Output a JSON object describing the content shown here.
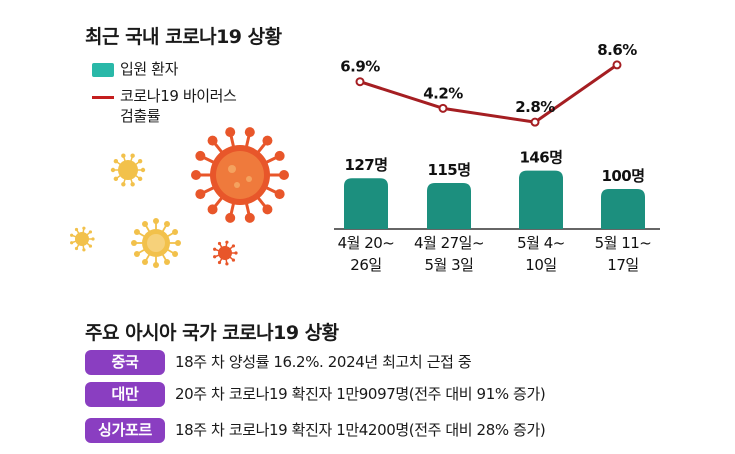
{
  "main_title": "최근 국내 코로나19 상황",
  "legend": {
    "bar_label": "입원 환자",
    "line_label_1": "코로나19 바이러스",
    "line_label_2": "검출률"
  },
  "colors": {
    "bar": "#1c8f7e",
    "line": "#a51e22",
    "badge": "#8a3ec1",
    "virus_orange": "#e8562a",
    "virus_yellow": "#f2c14b"
  },
  "chart_data": {
    "type": "bar",
    "categories": [
      [
        "4월 20~",
        "26일"
      ],
      [
        "4월 27일~",
        "5월 3일"
      ],
      [
        "5월 4~",
        "10일"
      ],
      [
        "5월 11~",
        "17일"
      ]
    ],
    "series": [
      {
        "name": "입원 환자",
        "type": "bar",
        "values": [
          127,
          115,
          146,
          100
        ],
        "labels": [
          "127명",
          "115명",
          "146명",
          "100명"
        ]
      },
      {
        "name": "코로나19 바이러스 검출률",
        "type": "line",
        "values": [
          6.9,
          4.2,
          2.8,
          8.6
        ],
        "labels": [
          "6.9%",
          "4.2%",
          "2.8%",
          "8.6%"
        ]
      }
    ]
  },
  "asia_section": {
    "title": "주요 아시아 국가 코로나19 상황",
    "rows": [
      {
        "country": "중국",
        "text": "18주 차 양성률 16.2%. 2024년 최고치 근접 중"
      },
      {
        "country": "대만",
        "text": "20주 차 코로나19 확진자 1만9097명(전주 대비 91% 증가)"
      },
      {
        "country": "싱가포르",
        "text": "18주 차 코로나19 확진자 1만4200명(전주 대비 28% 증가)"
      }
    ]
  }
}
